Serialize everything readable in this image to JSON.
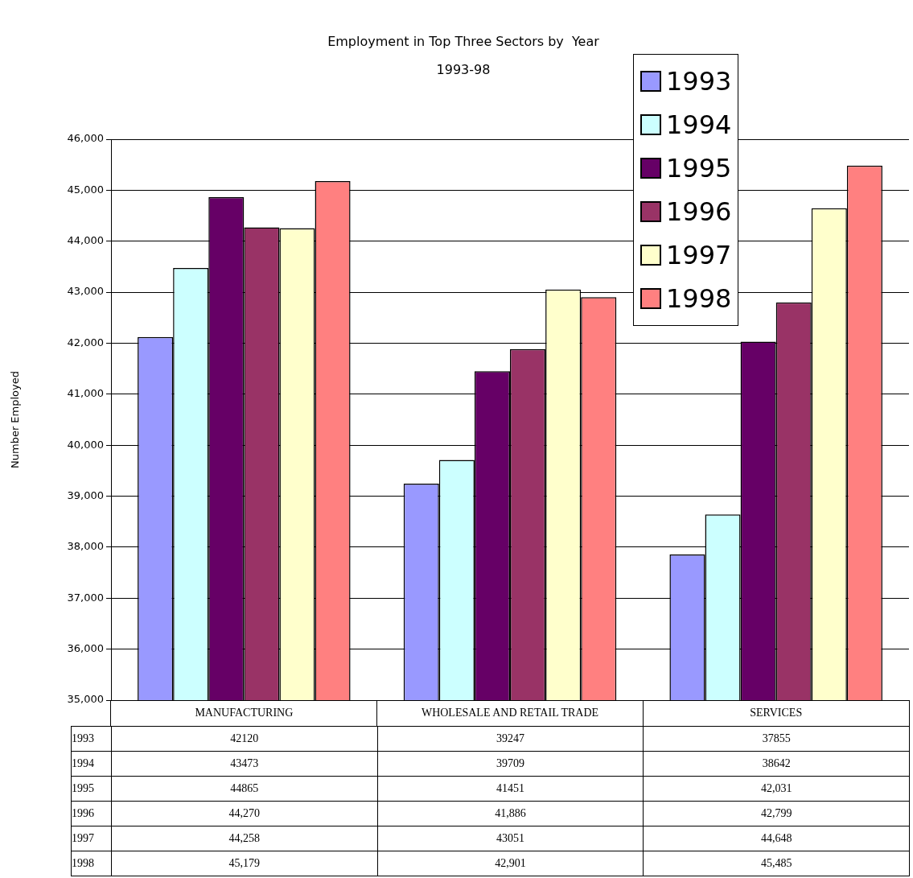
{
  "chart_data": {
    "type": "bar",
    "title": "Employment in Top Three Sectors by  Year",
    "subtitle": "1993-98",
    "ylabel": "Number Employed",
    "categories": [
      "MANUFACTURING",
      "WHOLESALE AND RETAIL TRADE",
      "SERVICES"
    ],
    "series": [
      {
        "name": "1993",
        "color": "#9999ff",
        "values": [
          42120,
          39247,
          37855
        ],
        "value_labels": [
          "42120",
          "39247",
          "37855"
        ]
      },
      {
        "name": "1994",
        "color": "#ccffff",
        "values": [
          43473,
          39709,
          38642
        ],
        "value_labels": [
          "43473",
          "39709",
          "38642"
        ]
      },
      {
        "name": "1995",
        "color": "#660066",
        "values": [
          44865,
          41451,
          42031
        ],
        "value_labels": [
          "44865",
          "41451",
          "42,031"
        ]
      },
      {
        "name": "1996",
        "color": "#993366",
        "values": [
          44270,
          41886,
          42799
        ],
        "value_labels": [
          "44,270",
          "41,886",
          "42,799"
        ]
      },
      {
        "name": "1997",
        "color": "#ffffcc",
        "values": [
          44258,
          43051,
          44648
        ],
        "value_labels": [
          "44,258",
          "43051",
          "44,648"
        ]
      },
      {
        "name": "1998",
        "color": "#ff8080",
        "values": [
          45179,
          42901,
          45485
        ],
        "value_labels": [
          "45,179",
          "42,901",
          "45,485"
        ]
      }
    ],
    "ylim": [
      35000,
      46000
    ],
    "yticks": [
      {
        "value": 35000,
        "label": "35,000"
      },
      {
        "value": 36000,
        "label": "36,000"
      },
      {
        "value": 37000,
        "label": "37,000"
      },
      {
        "value": 38000,
        "label": "38,000"
      },
      {
        "value": 39000,
        "label": "39,000"
      },
      {
        "value": 40000,
        "label": "40,000"
      },
      {
        "value": 41000,
        "label": "41,000"
      },
      {
        "value": 42000,
        "label": "42,000"
      },
      {
        "value": 43000,
        "label": "43,000"
      },
      {
        "value": 44000,
        "label": "44,000"
      },
      {
        "value": 45000,
        "label": "45,000"
      },
      {
        "value": 46000,
        "label": "46,000"
      }
    ],
    "grid": "y",
    "legend": "top right"
  }
}
